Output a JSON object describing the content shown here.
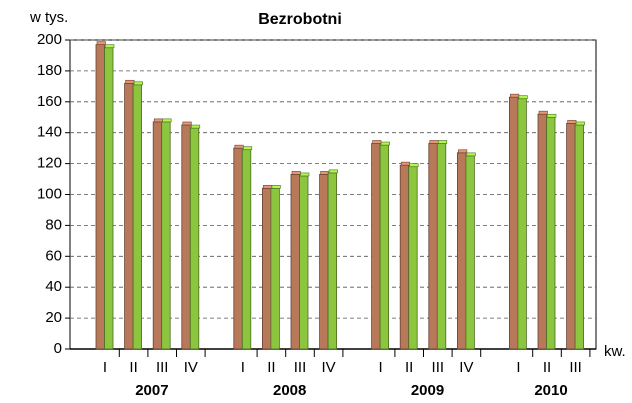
{
  "chart_data": {
    "type": "bar",
    "title": "Bezrobotni",
    "y_label": "w tys.",
    "x_label": "kw.",
    "groups": [
      {
        "label": "2007",
        "categories": [
          "I",
          "II",
          "III",
          "IV"
        ]
      },
      {
        "label": "2008",
        "categories": [
          "I",
          "II",
          "III",
          "IV"
        ]
      },
      {
        "label": "2009",
        "categories": [
          "I",
          "II",
          "III",
          "IV"
        ]
      },
      {
        "label": "2010",
        "categories": [
          "I",
          "II",
          "III"
        ]
      }
    ],
    "series": [
      {
        "color": "#b8785a",
        "values": [
          197,
          172,
          147,
          145,
          130,
          104,
          113,
          113,
          133,
          119,
          133,
          127,
          163,
          152,
          146
        ]
      },
      {
        "color": "#8cc63f",
        "values": [
          195,
          171,
          147,
          143,
          129,
          104,
          112,
          114,
          132,
          118,
          133,
          125,
          162,
          150,
          145
        ]
      }
    ],
    "ylim": [
      0,
      200
    ],
    "yticks": [
      0,
      20,
      40,
      60,
      80,
      100,
      120,
      140,
      160,
      180,
      200
    ],
    "grid": true
  }
}
